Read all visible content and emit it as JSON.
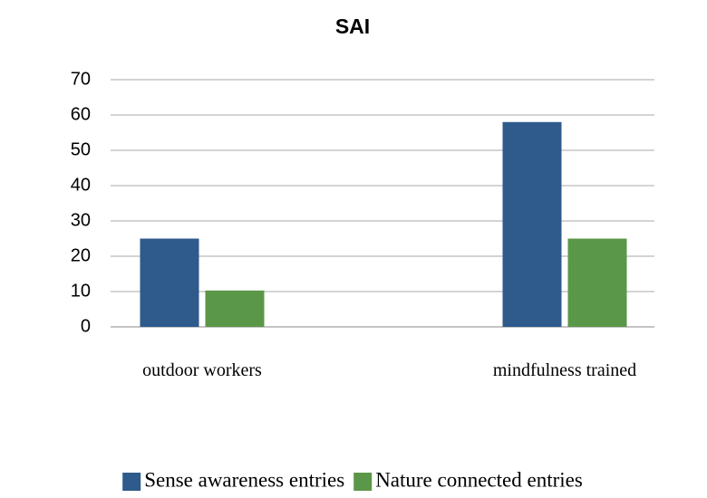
{
  "chart_data": {
    "type": "bar",
    "title": "SAI",
    "categories": [
      "outdoor workers",
      "mindfulness trained"
    ],
    "series": [
      {
        "name": "Sense awareness entries",
        "color": "#2e5a8c",
        "values": [
          25,
          58
        ]
      },
      {
        "name": "Nature connected entries",
        "color": "#5b9748",
        "values": [
          10.3,
          25
        ]
      }
    ],
    "ylim": [
      0,
      70
    ],
    "yticks": [
      0,
      10,
      20,
      30,
      40,
      50,
      60,
      70
    ],
    "grid": true,
    "legend": "bottom"
  }
}
